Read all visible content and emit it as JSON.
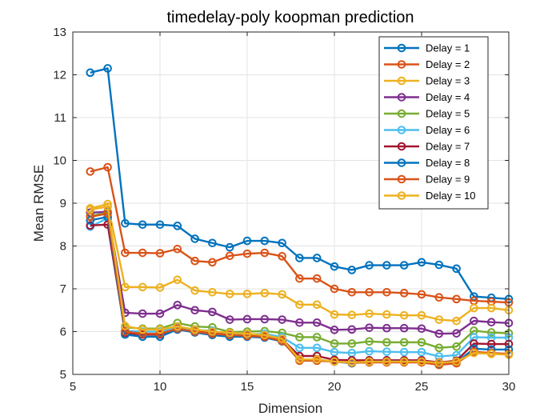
{
  "chart_data": {
    "type": "line",
    "title": "timedelay-poly koopman prediction",
    "xlabel": "Dimension",
    "ylabel": "Mean RMSE",
    "xlim": [
      5,
      30
    ],
    "ylim": [
      5,
      13
    ],
    "xticks": [
      "5",
      "10",
      "15",
      "20",
      "25",
      "30"
    ],
    "yticks": [
      "5",
      "6",
      "7",
      "8",
      "9",
      "10",
      "11",
      "12",
      "13"
    ],
    "grid": true,
    "legend_position": "top-right",
    "marker": "circle",
    "x": [
      6,
      7,
      8,
      9,
      10,
      11,
      12,
      13,
      14,
      15,
      16,
      17,
      18,
      19,
      20,
      21,
      22,
      23,
      24,
      25,
      26,
      27,
      28,
      29,
      30
    ],
    "series": [
      {
        "name": "Delay = 1",
        "color": "#0072BD",
        "values": [
          12.05,
          12.15,
          8.53,
          8.5,
          8.5,
          8.47,
          8.17,
          8.07,
          7.97,
          8.12,
          8.12,
          8.07,
          7.72,
          7.72,
          7.52,
          7.44,
          7.55,
          7.55,
          7.55,
          7.62,
          7.56,
          7.47,
          6.82,
          6.79,
          6.76
        ]
      },
      {
        "name": "Delay = 2",
        "color": "#D95319",
        "values": [
          9.74,
          9.84,
          7.84,
          7.84,
          7.83,
          7.93,
          7.65,
          7.62,
          7.77,
          7.82,
          7.84,
          7.76,
          7.24,
          7.24,
          7.0,
          6.92,
          6.92,
          6.92,
          6.9,
          6.87,
          6.8,
          6.76,
          6.72,
          6.7,
          6.68
        ]
      },
      {
        "name": "Delay = 3",
        "color": "#EDB120",
        "values": [
          8.88,
          8.98,
          7.04,
          7.04,
          7.03,
          7.21,
          6.96,
          6.92,
          6.88,
          6.88,
          6.9,
          6.87,
          6.63,
          6.63,
          6.4,
          6.39,
          6.42,
          6.4,
          6.38,
          6.38,
          6.28,
          6.25,
          6.55,
          6.55,
          6.5
        ]
      },
      {
        "name": "Delay = 4",
        "color": "#7E2F8E",
        "values": [
          8.78,
          8.8,
          6.44,
          6.42,
          6.42,
          6.62,
          6.5,
          6.46,
          6.28,
          6.29,
          6.29,
          6.28,
          6.21,
          6.21,
          6.04,
          6.05,
          6.09,
          6.08,
          6.08,
          6.07,
          5.95,
          5.96,
          6.25,
          6.22,
          6.2
        ]
      },
      {
        "name": "Delay = 5",
        "color": "#77AC30",
        "values": [
          8.7,
          8.78,
          6.1,
          6.07,
          6.07,
          6.2,
          6.12,
          6.1,
          5.99,
          6.0,
          6.01,
          5.97,
          5.87,
          5.87,
          5.72,
          5.72,
          5.77,
          5.75,
          5.75,
          5.75,
          5.62,
          5.65,
          6.02,
          5.98,
          5.96
        ]
      },
      {
        "name": "Delay = 6",
        "color": "#4DBEEE",
        "values": [
          8.45,
          8.65,
          6.02,
          6.0,
          6.0,
          6.1,
          6.04,
          6.02,
          5.93,
          5.93,
          5.95,
          5.87,
          5.62,
          5.62,
          5.52,
          5.5,
          5.54,
          5.53,
          5.52,
          5.52,
          5.42,
          5.45,
          5.87,
          5.86,
          5.86
        ]
      },
      {
        "name": "Delay = 7",
        "color": "#A2142F",
        "values": [
          8.48,
          8.5,
          5.97,
          5.93,
          5.93,
          6.05,
          6.0,
          5.97,
          5.92,
          5.9,
          5.9,
          5.82,
          5.43,
          5.43,
          5.34,
          5.33,
          5.33,
          5.33,
          5.33,
          5.33,
          5.28,
          5.32,
          5.72,
          5.71,
          5.71
        ]
      },
      {
        "name": "Delay = 8",
        "color": "#0072BD",
        "values": [
          8.6,
          8.68,
          5.93,
          5.88,
          5.88,
          6.05,
          5.98,
          5.92,
          5.88,
          5.88,
          5.86,
          5.77,
          5.35,
          5.33,
          5.3,
          5.26,
          5.3,
          5.3,
          5.3,
          5.3,
          5.25,
          5.28,
          5.6,
          5.58,
          5.58
        ]
      },
      {
        "name": "Delay = 9",
        "color": "#D95319",
        "values": [
          8.68,
          8.76,
          6.0,
          5.95,
          5.95,
          6.07,
          6.0,
          5.95,
          5.92,
          5.9,
          5.88,
          5.78,
          5.32,
          5.32,
          5.3,
          5.27,
          5.28,
          5.28,
          5.28,
          5.28,
          5.22,
          5.26,
          5.53,
          5.5,
          5.48
        ]
      },
      {
        "name": "Delay = 10",
        "color": "#EDB120",
        "values": [
          8.85,
          8.92,
          6.13,
          6.05,
          6.05,
          6.12,
          6.05,
          6.0,
          5.97,
          5.95,
          5.92,
          5.83,
          5.35,
          5.35,
          5.3,
          5.28,
          5.3,
          5.3,
          5.3,
          5.3,
          5.27,
          5.3,
          5.5,
          5.48,
          5.46
        ]
      }
    ]
  }
}
